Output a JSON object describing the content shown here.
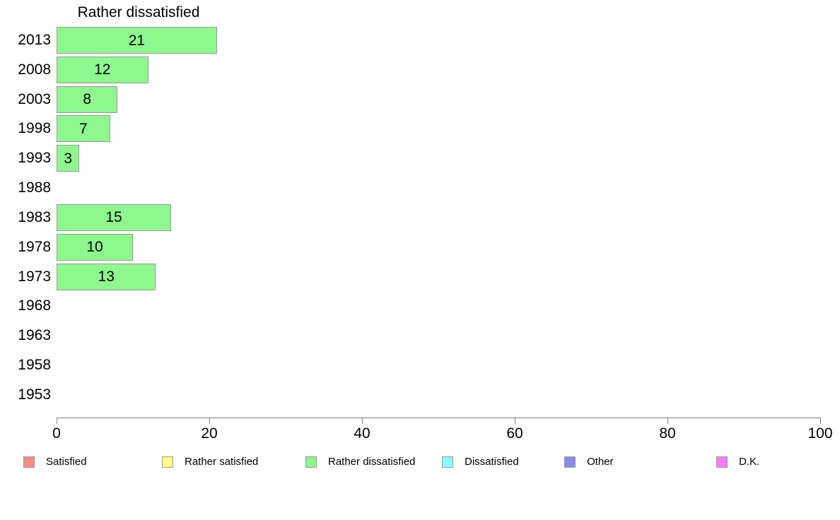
{
  "title": "Rather dissatisfied",
  "chart_data": {
    "type": "bar",
    "orientation": "horizontal",
    "title": "Rather dissatisfied",
    "categories": [
      "2013",
      "2008",
      "2003",
      "1998",
      "1993",
      "1988",
      "1983",
      "1978",
      "1973",
      "1968",
      "1963",
      "1958",
      "1953"
    ],
    "values": [
      21,
      12,
      8,
      7,
      3,
      null,
      15,
      10,
      13,
      null,
      null,
      null,
      null
    ],
    "value_labels": [
      "21",
      "12",
      "8",
      "7",
      "3",
      "",
      "15",
      "10",
      "13",
      "",
      "",
      "",
      ""
    ],
    "series_name": "Rather dissatisfied",
    "bar_color": "#8DF88D",
    "bar_border_color": "#999999",
    "xlim": [
      0,
      100
    ],
    "x_ticks": [
      0,
      20,
      40,
      60,
      80,
      100
    ],
    "x_tick_labels": [
      "0",
      "20",
      "40",
      "60",
      "80",
      "100"
    ],
    "axis_color": "#808080",
    "grid": false,
    "legend_position": "bottom"
  },
  "legend": {
    "items": [
      {
        "label": "Satisfied",
        "color": "#F88A8A"
      },
      {
        "label": "Rather satisfied",
        "color": "#FFFF8A"
      },
      {
        "label": "Rather dissatisfied",
        "color": "#8DF88D"
      },
      {
        "label": "Dissatisfied",
        "color": "#8AFFFF"
      },
      {
        "label": "Other",
        "color": "#8A8AF0"
      },
      {
        "label": "D.K.",
        "color": "#F87CF8"
      }
    ]
  }
}
